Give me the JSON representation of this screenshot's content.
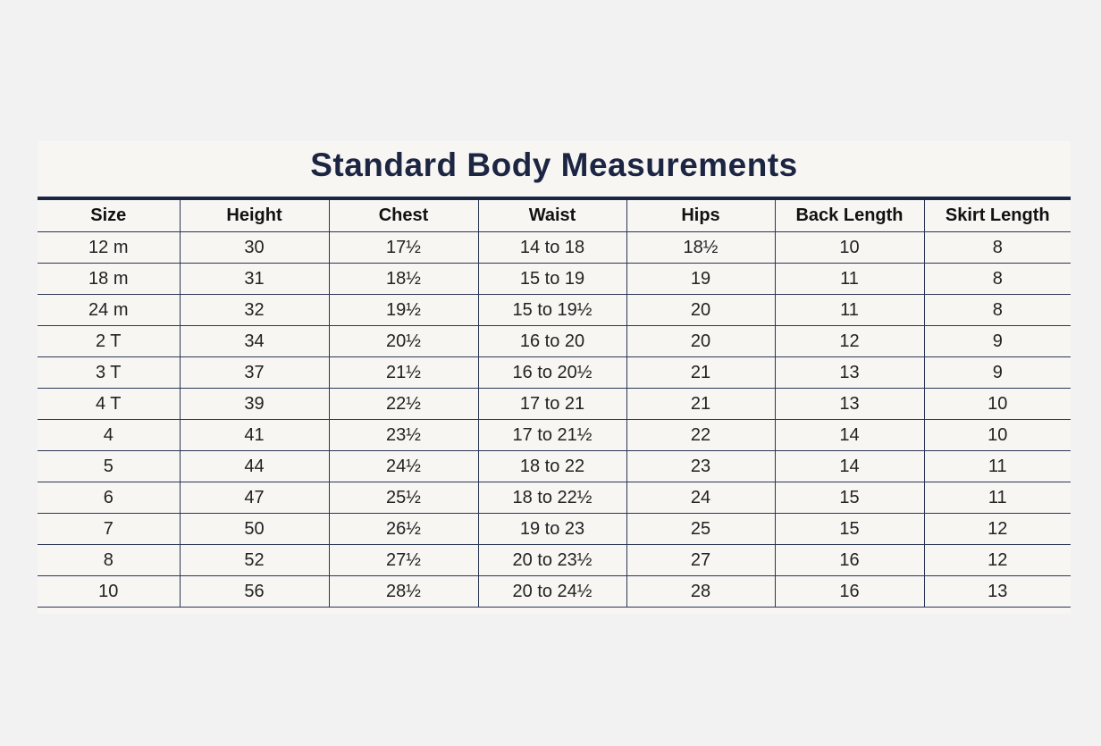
{
  "title": "Standard Body Measurements",
  "table": {
    "columns": [
      "Size",
      "Height",
      "Chest",
      "Waist",
      "Hips",
      "Back Length",
      "Skirt Length"
    ],
    "rows": [
      [
        "12 m",
        "30",
        "17½",
        "14 to 18",
        "18½",
        "10",
        "8"
      ],
      [
        "18 m",
        "31",
        "18½",
        "15 to 19",
        "19",
        "11",
        "8"
      ],
      [
        "24 m",
        "32",
        "19½",
        "15 to 19½",
        "20",
        "11",
        "8"
      ],
      [
        "2 T",
        "34",
        "20½",
        "16 to 20",
        "20",
        "12",
        "9"
      ],
      [
        "3 T",
        "37",
        "21½",
        "16 to 20½",
        "21",
        "13",
        "9"
      ],
      [
        "4 T",
        "39",
        "22½",
        "17 to 21",
        "21",
        "13",
        "10"
      ],
      [
        "4",
        "41",
        "23½",
        "17 to 21½",
        "22",
        "14",
        "10"
      ],
      [
        "5",
        "44",
        "24½",
        "18 to 22",
        "23",
        "14",
        "11"
      ],
      [
        "6",
        "47",
        "25½",
        "18 to 22½",
        "24",
        "15",
        "11"
      ],
      [
        "7",
        "50",
        "26½",
        "19 to 23",
        "25",
        "15",
        "12"
      ],
      [
        "8",
        "52",
        "27½",
        "20 to 23½",
        "27",
        "16",
        "12"
      ],
      [
        "10",
        "56",
        "28½",
        "20 to 24½",
        "28",
        "16",
        "13"
      ]
    ]
  }
}
